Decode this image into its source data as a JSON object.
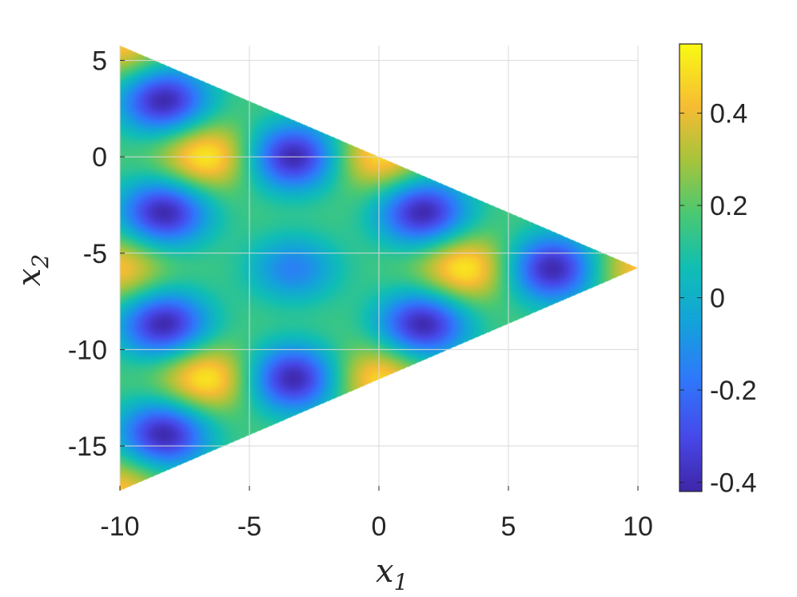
{
  "chart_data": {
    "type": "heatmap",
    "title": "",
    "xlabel": {
      "base": "x",
      "sub": "1"
    },
    "ylabel": {
      "base": "x",
      "sub": "2"
    },
    "xlim": [
      -10,
      10
    ],
    "ylim": [
      -17.32,
      5.77
    ],
    "xticks": [
      -10,
      -5,
      0,
      5,
      10
    ],
    "xtick_labels": [
      "-10",
      "-5",
      "0",
      "5",
      "10"
    ],
    "yticks": [
      5,
      0,
      -5,
      -10,
      -15
    ],
    "ytick_labels": [
      "5",
      "0",
      "-5",
      "-10",
      "-15"
    ],
    "grid": true,
    "domain_shape": "triangle",
    "domain_vertices": [
      [
        -10,
        5.77
      ],
      [
        -10,
        -17.32
      ],
      [
        10,
        -5.77
      ]
    ],
    "colormap": "parula",
    "colorbar": {
      "range": [
        -0.42,
        0.55
      ],
      "ticks": [
        0.4,
        0.2,
        0,
        -0.2,
        -0.4
      ],
      "tick_labels": [
        "0.4",
        "0.2",
        "0",
        "-0.2",
        "-0.4"
      ]
    },
    "maxima": [
      {
        "x": -6.7,
        "y": 0,
        "value": 0.55
      },
      {
        "x": -6.7,
        "y": -11.5,
        "value": 0.55
      },
      {
        "x": 3.3,
        "y": -5.8,
        "value": 0.55
      },
      {
        "x": 0,
        "y": 0,
        "value": 0.5
      },
      {
        "x": 0,
        "y": -11.5,
        "value": 0.5
      },
      {
        "x": -10,
        "y": -5.8,
        "value": 0.45
      },
      {
        "x": -10,
        "y": 5.77,
        "value": 0.45
      },
      {
        "x": -10,
        "y": -17.32,
        "value": 0.45
      },
      {
        "x": 10,
        "y": -5.8,
        "value": 0.45
      }
    ],
    "minima": [
      {
        "x": -8.3,
        "y": 2.9,
        "value": -0.42
      },
      {
        "x": -8.3,
        "y": -2.9,
        "value": -0.42
      },
      {
        "x": -8.3,
        "y": -8.7,
        "value": -0.42
      },
      {
        "x": -8.3,
        "y": -14.4,
        "value": -0.42
      },
      {
        "x": -3.3,
        "y": 0,
        "value": -0.42
      },
      {
        "x": -3.3,
        "y": -11.5,
        "value": -0.42
      },
      {
        "x": 1.7,
        "y": -2.9,
        "value": -0.42
      },
      {
        "x": 1.7,
        "y": -8.7,
        "value": -0.42
      },
      {
        "x": 6.7,
        "y": -5.8,
        "value": -0.42
      },
      {
        "x": -3.3,
        "y": -5.8,
        "value": -0.15
      }
    ],
    "background_value": 0.18
  }
}
